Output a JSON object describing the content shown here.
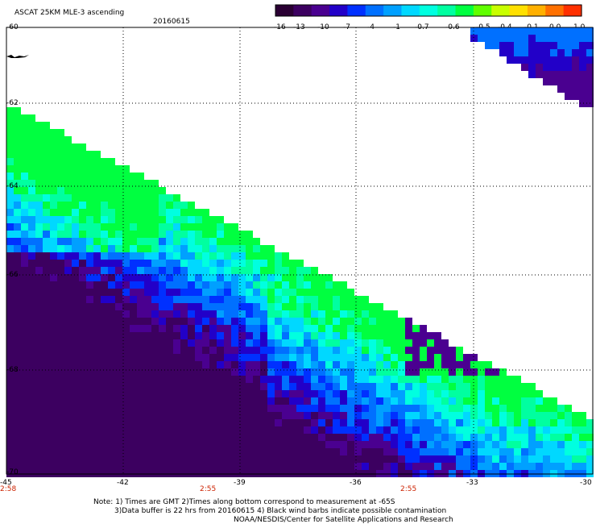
{
  "header": {
    "title": "ASCAT 25KM MLE-3 ascending",
    "date": "20160615"
  },
  "colorbar": {
    "colors": [
      "#2a0033",
      "#3c0060",
      "#4a0090",
      "#2200c8",
      "#0030ff",
      "#0070ff",
      "#00a0ff",
      "#00d8ff",
      "#00ffe0",
      "#00ffa0",
      "#00ff40",
      "#60ff00",
      "#c8ff00",
      "#ffe000",
      "#ffb000",
      "#ff7000",
      "#ff3000"
    ],
    "tick_labels": [
      "-16",
      "-13",
      "-10",
      "-7",
      "-4",
      "-1",
      "-0.7",
      "-0.6",
      "-0.5",
      "-0.4",
      "-0.1",
      "0.0",
      "1.0"
    ]
  },
  "map": {
    "lat_labels": [
      "-60",
      "-62",
      "-64",
      "-66",
      "-68",
      "-70"
    ],
    "lon_labels": [
      "-45",
      "-42",
      "-39",
      "-36",
      "-33",
      "-30"
    ],
    "time_labels": [
      "2:58",
      "2:55",
      "2:55"
    ]
  },
  "notes": {
    "line1": "Note: 1) Times are GMT 2)Times along bottom correspond to measurement at -65S",
    "line2": "3)Data buffer is 22 hrs from 20160615 4) Black wind barbs indicate possible contamination",
    "line3": "NOAA/NESDIS/Center for Satellite Applications and Research"
  }
}
